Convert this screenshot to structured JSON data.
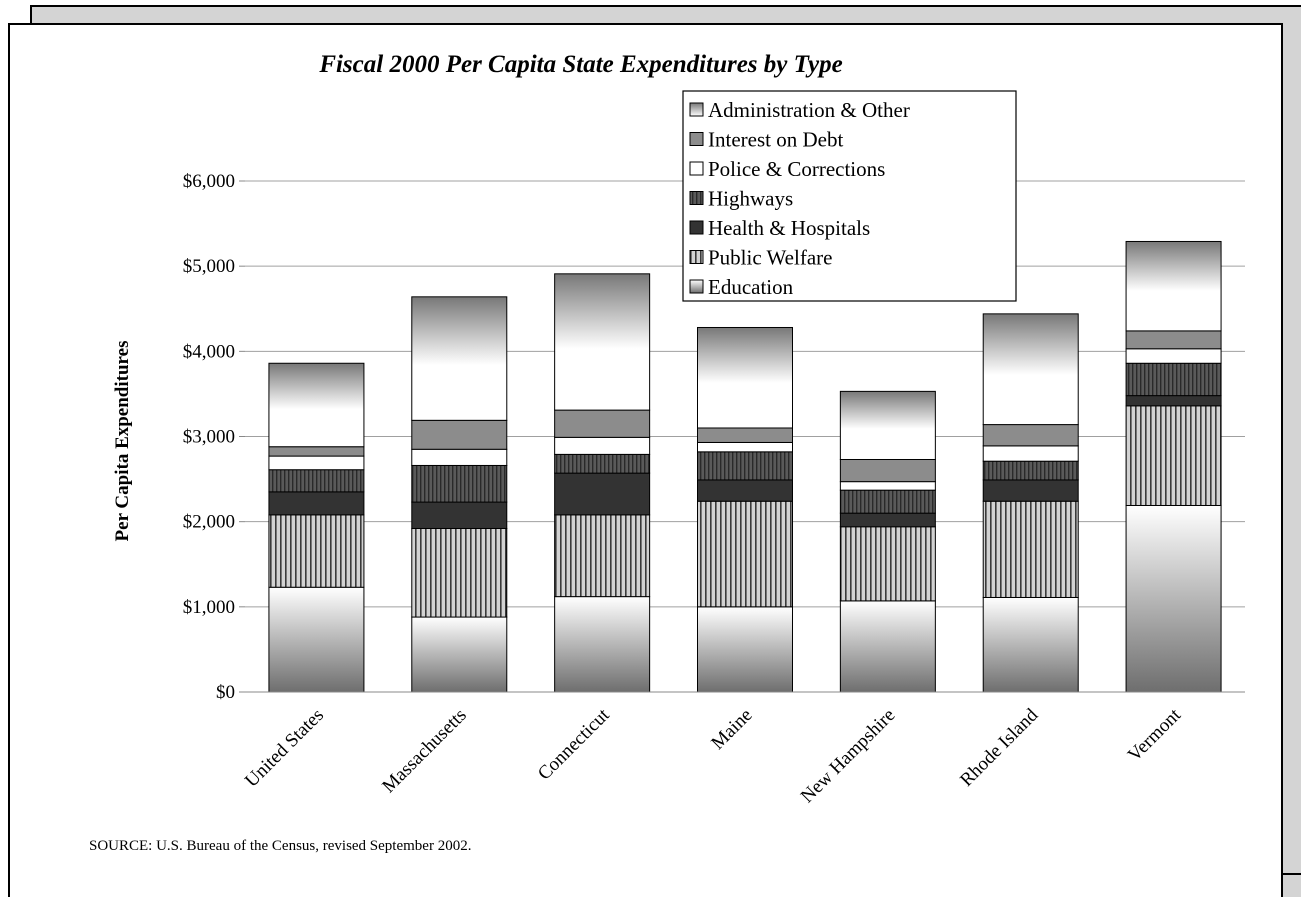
{
  "source_note": "SOURCE: U.S. Bureau of the Census, revised September 2002.",
  "chart_data": {
    "type": "bar",
    "stacked": true,
    "title": "Fiscal 2000 Per Capita State Expenditures by Type",
    "xlabel": "",
    "ylabel": "Per Capita Expenditures",
    "ylim": [
      0,
      6000
    ],
    "yticks": [
      "$0",
      "$1,000",
      "$2,000",
      "$3,000",
      "$4,000",
      "$5,000",
      "$6,000"
    ],
    "grid": true,
    "legend_position": "top-right",
    "categories": [
      "United States",
      "Massachusetts",
      "Connecticut",
      "Maine",
      "New Hampshire",
      "Rhode Island",
      "Vermont"
    ],
    "series": [
      {
        "name": "Education",
        "values": [
          1230,
          880,
          1120,
          1000,
          1070,
          1110,
          2190
        ],
        "fill": "grad-edu"
      },
      {
        "name": "Public Welfare",
        "values": [
          850,
          1040,
          960,
          1240,
          870,
          1130,
          1170
        ],
        "fill": "pat-welfare"
      },
      {
        "name": "Health & Hospitals",
        "values": [
          270,
          310,
          490,
          250,
          160,
          250,
          120
        ],
        "fill": "#333333"
      },
      {
        "name": "Highways",
        "values": [
          260,
          430,
          220,
          330,
          270,
          220,
          380
        ],
        "fill": "pat-highways"
      },
      {
        "name": "Police & Corrections",
        "values": [
          160,
          190,
          200,
          110,
          100,
          180,
          170
        ],
        "fill": "#ffffff"
      },
      {
        "name": "Interest on Debt",
        "values": [
          110,
          340,
          320,
          170,
          260,
          250,
          210
        ],
        "fill": "#8c8c8c"
      },
      {
        "name": "Administration & Other",
        "values": [
          980,
          1450,
          1600,
          1180,
          800,
          1300,
          1050
        ],
        "fill": "grad-admin"
      }
    ],
    "legend_order": [
      "Administration & Other",
      "Interest on Debt",
      "Police & Corrections",
      "Highways",
      "Health & Hospitals",
      "Public Welfare",
      "Education"
    ]
  }
}
